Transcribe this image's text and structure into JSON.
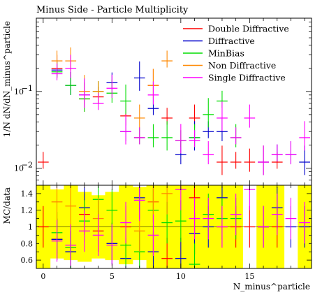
{
  "chart_data": {
    "type": "scatter",
    "title": "Minus Side - Particle Multiplicity",
    "xlabel": "N_minus^particle",
    "ylabel_top": "1/N dN/dN_minus^particle",
    "ylabel_bottom": "MC/data",
    "xlim": [
      -0.5,
      19.5
    ],
    "ylim_top": [
      0.006,
      0.9
    ],
    "ylim_bottom": [
      0.5,
      1.5
    ],
    "y_scale_top": "log",
    "x_ticks": [
      0,
      5,
      10,
      15
    ],
    "y_ticks_top": [
      {
        "value": 0.1,
        "label": "10^-1"
      },
      {
        "value": 0.01,
        "label": "10^-2"
      }
    ],
    "y_ticks_bottom": [
      0.6,
      0.8,
      1,
      1.2,
      1.4
    ],
    "legend_position": "top-right",
    "legend": [
      "Double Diffractive",
      "Diffractive",
      "MinBias",
      "Non Diffractive",
      "Single Diffractive"
    ],
    "series": [
      {
        "name": "Double Diffractive",
        "color": "#ff0000",
        "x": [
          0,
          1,
          3,
          4,
          6,
          8,
          9,
          11,
          13,
          14,
          15,
          16,
          17
        ],
        "y": [
          0.012,
          0.2,
          0.08,
          0.085,
          0.048,
          0.12,
          0.045,
          0.045,
          0.012,
          0.012,
          0.012,
          0.012,
          0.012
        ],
        "ratio": [
          1,
          0.85,
          1.15,
          0.95,
          1,
          1.3,
          0.62,
          1.35,
          1,
          1,
          1,
          1,
          1
        ]
      },
      {
        "name": "Diffractive",
        "color": "#0000cc",
        "x": [
          1,
          2,
          3,
          5,
          6,
          7,
          8,
          10,
          11,
          12,
          13,
          16,
          17,
          18,
          19
        ],
        "y": [
          0.19,
          0.12,
          0.09,
          0.13,
          0.03,
          0.15,
          0.06,
          0.015,
          0.025,
          0.03,
          0.03,
          0.012,
          0.015,
          0.015,
          0.012
        ],
        "ratio": [
          0.85,
          0.7,
          1.23,
          0.8,
          0.62,
          1.35,
          0.7,
          0.62,
          0.92,
          1,
          1.35,
          1,
          1.23,
          1,
          1
        ]
      },
      {
        "name": "MinBias",
        "color": "#00dd00",
        "x": [
          1,
          2,
          3,
          4,
          5,
          6,
          7,
          8,
          9,
          10,
          11,
          12,
          13,
          14
        ],
        "y": [
          0.18,
          0.12,
          0.08,
          0.1,
          0.095,
          0.075,
          0.025,
          0.025,
          0.025,
          0.023,
          0.025,
          0.05,
          0.075,
          0.025
        ],
        "ratio": [
          0.93,
          0.75,
          1.07,
          1.33,
          1.2,
          0.78,
          0.7,
          1.2,
          1.05,
          1.07,
          0.55,
          1.15,
          1.1,
          1.1
        ]
      },
      {
        "name": "Non Diffractive",
        "color": "#ff8800",
        "x": [
          1,
          2,
          3,
          4,
          7,
          8,
          9
        ],
        "y": [
          0.25,
          0.25,
          0.1,
          0.1,
          0.045,
          0.12,
          0.25
        ],
        "ratio": [
          1.3,
          1.25,
          0.95,
          1.1,
          0.95,
          1.3,
          1.4
        ]
      },
      {
        "name": "Single Diffractive",
        "color": "#ff00ff",
        "x": [
          1,
          2,
          3,
          4,
          5,
          6,
          7,
          8,
          10,
          11,
          12,
          13,
          14,
          15,
          16,
          17,
          18,
          19
        ],
        "y": [
          0.17,
          0.2,
          0.09,
          0.07,
          0.11,
          0.03,
          0.025,
          0.09,
          0.023,
          0.023,
          0.015,
          0.045,
          0.025,
          0.045,
          0.012,
          0.015,
          0.015,
          0.025
        ],
        "ratio": [
          0.83,
          0.78,
          0.95,
          0.9,
          0.78,
          1.05,
          1.32,
          0.9,
          1.45,
          1.1,
          1.1,
          1.0,
          1.15,
          1.45,
          1.0,
          1.15,
          1.1,
          1.05
        ]
      }
    ]
  }
}
